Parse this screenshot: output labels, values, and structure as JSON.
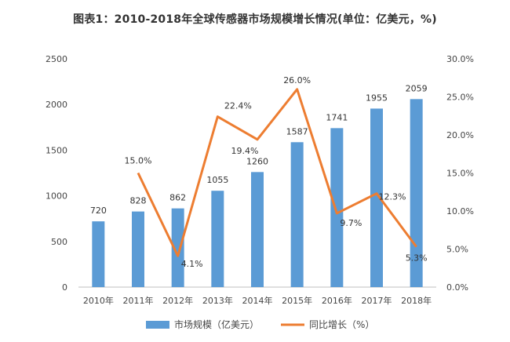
{
  "chart_data": {
    "type": "bar",
    "title": "图表1：2010-2018年全球传感器市场规模增长情况(单位：亿美元，%)",
    "categories": [
      "2010年",
      "2011年",
      "2012年",
      "2013年",
      "2014年",
      "2015年",
      "2016年",
      "2017年",
      "2018年"
    ],
    "series": [
      {
        "name": "市场规模（亿美元）",
        "type": "bar",
        "axis": "left",
        "color": "#5b9bd5",
        "values": [
          720,
          828,
          862,
          1055,
          1260,
          1587,
          1741,
          1955,
          2059
        ],
        "labels": [
          "720",
          "828",
          "862",
          "1055",
          "1260",
          "1587",
          "1741",
          "1955",
          "2059"
        ]
      },
      {
        "name": "同比增长（%）",
        "type": "line",
        "axis": "right",
        "color": "#ed7d31",
        "values": [
          null,
          15.0,
          4.1,
          22.4,
          19.4,
          26.0,
          9.7,
          12.3,
          5.3
        ],
        "labels": [
          "",
          "15.0%",
          "4.1%",
          "22.4%",
          "19.4%",
          "26.0%",
          "9.7%",
          "12.3%",
          "5.3%"
        ]
      }
    ],
    "y_left": {
      "range": [
        0,
        2500
      ],
      "ticks": [
        "0",
        "500",
        "1000",
        "1500",
        "2000",
        "2500"
      ]
    },
    "y_right": {
      "range": [
        0,
        30
      ],
      "ticks": [
        "0.0%",
        "5.0%",
        "10.0%",
        "15.0%",
        "20.0%",
        "25.0%",
        "30.0%"
      ]
    },
    "grid": false,
    "legend_position": "bottom"
  }
}
